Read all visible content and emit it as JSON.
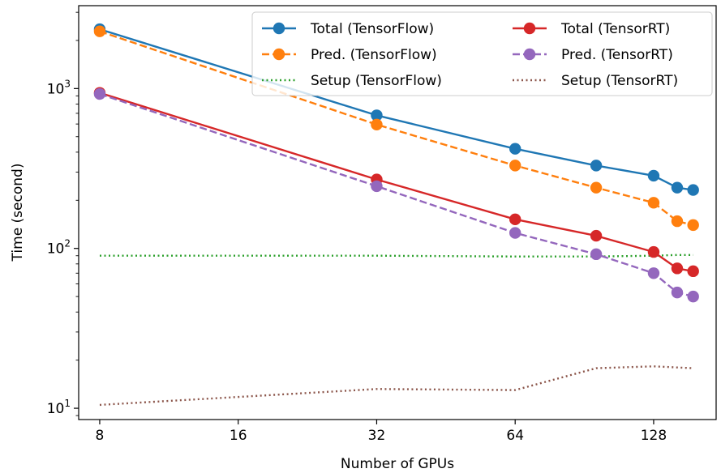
{
  "chart_data": {
    "type": "line",
    "xlabel": "Number of GPUs",
    "ylabel": "Time (second)",
    "x_scale": "log2",
    "y_scale": "log10",
    "xlim": [
      7.2,
      175
    ],
    "ylim": [
      8.5,
      3300
    ],
    "x_ticks": [
      8,
      16,
      32,
      64,
      128
    ],
    "x_tick_labels": [
      "8",
      "16",
      "32",
      "64",
      "128"
    ],
    "y_ticks": [
      10,
      100,
      1000
    ],
    "y_tick_labels": [
      {
        "base": "10",
        "exp": "1"
      },
      {
        "base": "10",
        "exp": "2"
      },
      {
        "base": "10",
        "exp": "3"
      }
    ],
    "legend_position": "top-right",
    "grid": false,
    "x": [
      8,
      32,
      64,
      96,
      128,
      144,
      156
    ],
    "series": [
      {
        "name": "Total (TensorFlow)",
        "color": "#1f77b4",
        "dash": "solid",
        "marker": true,
        "values": [
          2350,
          680,
          420,
          330,
          285,
          240,
          232
        ]
      },
      {
        "name": "Pred. (TensorFlow)",
        "color": "#ff7f0e",
        "dash": "dashed",
        "marker": true,
        "values": [
          2280,
          595,
          330,
          240,
          193,
          148,
          140
        ]
      },
      {
        "name": "Setup (TensorFlow)",
        "color": "#2ca02c",
        "dash": "dotted",
        "marker": false,
        "values": [
          90,
          90,
          89,
          89,
          90,
          91,
          91
        ]
      },
      {
        "name": "Total (TensorRT)",
        "color": "#d62728",
        "dash": "solid",
        "marker": true,
        "values": [
          940,
          270,
          152,
          120,
          95,
          75,
          72
        ]
      },
      {
        "name": "Pred. (TensorRT)",
        "color": "#9467bd",
        "dash": "dashed",
        "marker": true,
        "values": [
          925,
          245,
          125,
          92,
          70,
          53,
          50
        ]
      },
      {
        "name": "Setup (TensorRT)",
        "color": "#8c564b",
        "dash": "dotted",
        "marker": false,
        "values": [
          10.5,
          13.2,
          13.0,
          17.8,
          18.3,
          18.0,
          17.8
        ]
      }
    ]
  }
}
